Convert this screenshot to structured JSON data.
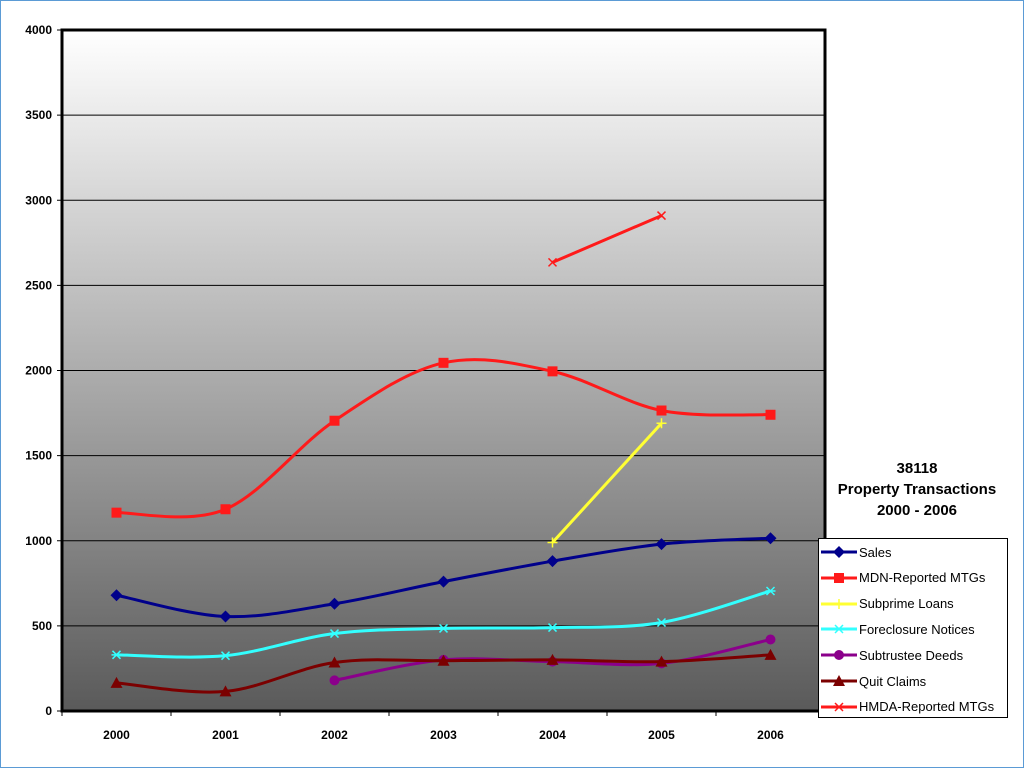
{
  "chart_data": {
    "type": "line",
    "title_lines": [
      "38118",
      "Property Transactions",
      "2000 - 2006"
    ],
    "categories": [
      "2000",
      "2001",
      "2002",
      "2003",
      "2004",
      "2005",
      "2006"
    ],
    "ylim": [
      0,
      4000
    ],
    "yticks": [
      0,
      500,
      1000,
      1500,
      2000,
      2500,
      3000,
      3500,
      4000
    ],
    "grid": true,
    "legend_position": "right",
    "series": [
      {
        "name": "Sales",
        "color": "#00008b",
        "marker": "diamond",
        "values": [
          680,
          555,
          630,
          760,
          880,
          980,
          1015
        ]
      },
      {
        "name": "MDN-Reported MTGs",
        "color": "#ff1a1a",
        "marker": "square",
        "values": [
          1165,
          1185,
          1705,
          2045,
          1995,
          1765,
          1740
        ]
      },
      {
        "name": "Subprime Loans",
        "color": "#ffff33",
        "marker": "plus",
        "values": [
          null,
          null,
          null,
          null,
          990,
          1690,
          null
        ]
      },
      {
        "name": "Foreclosure Notices",
        "color": "#33ffff",
        "marker": "asterisk",
        "values": [
          330,
          325,
          455,
          485,
          490,
          520,
          705
        ]
      },
      {
        "name": "Subtrustee Deeds",
        "color": "#8b008b",
        "marker": "circle",
        "values": [
          null,
          null,
          180,
          300,
          290,
          280,
          420
        ]
      },
      {
        "name": "Quit Claims",
        "color": "#7b0000",
        "marker": "triangle",
        "values": [
          165,
          115,
          285,
          295,
          300,
          290,
          330
        ]
      },
      {
        "name": "HMDA-Reported MTGs",
        "color": "#ff1a1a",
        "marker": "x",
        "values": [
          null,
          null,
          null,
          null,
          2635,
          2910,
          null
        ]
      }
    ]
  }
}
